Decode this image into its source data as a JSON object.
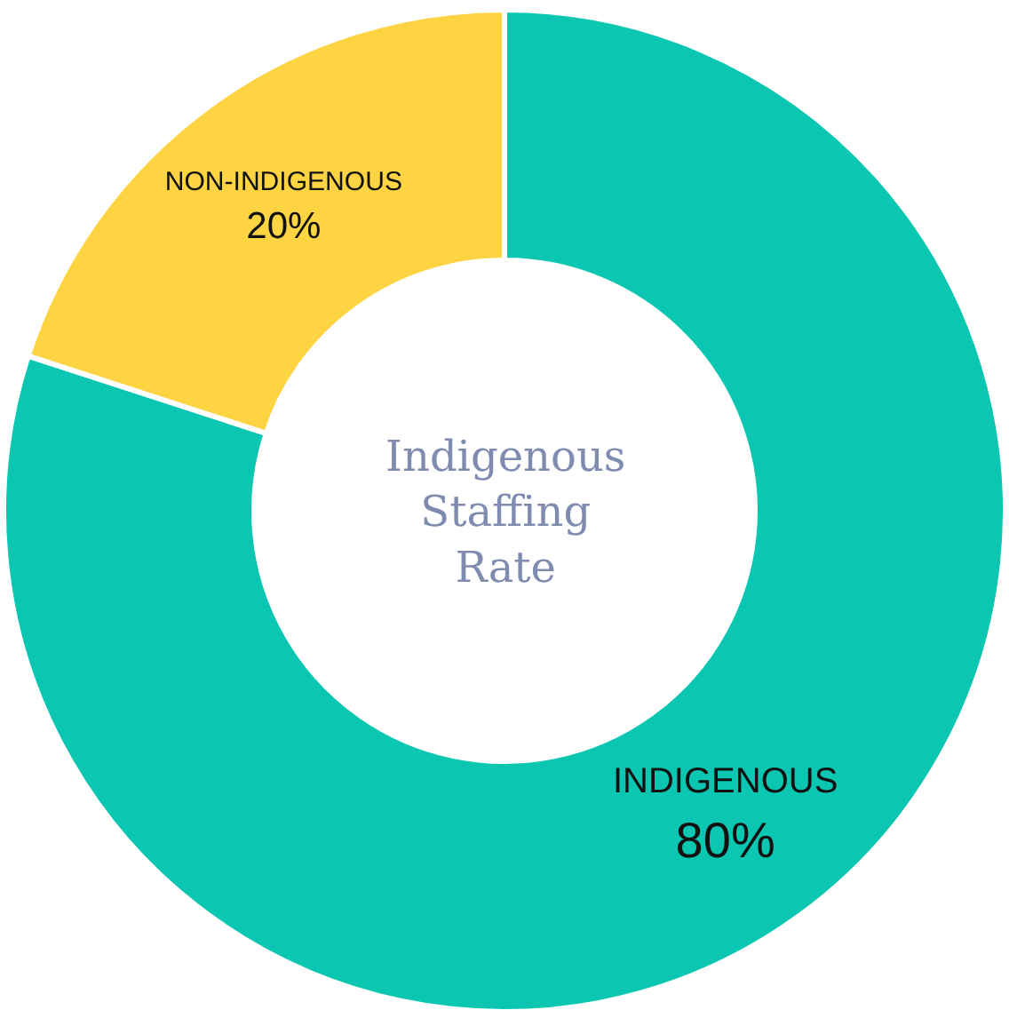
{
  "chart_data": {
    "type": "donut",
    "title": "Indigenous Staffing Rate",
    "categories": [
      "INDIGENOUS",
      "NON-INDIGENOUS"
    ],
    "values": [
      80,
      20
    ],
    "value_labels": [
      "80%",
      "20%"
    ],
    "colors": [
      "#0bc6b0",
      "#fed443"
    ],
    "legend": false
  }
}
